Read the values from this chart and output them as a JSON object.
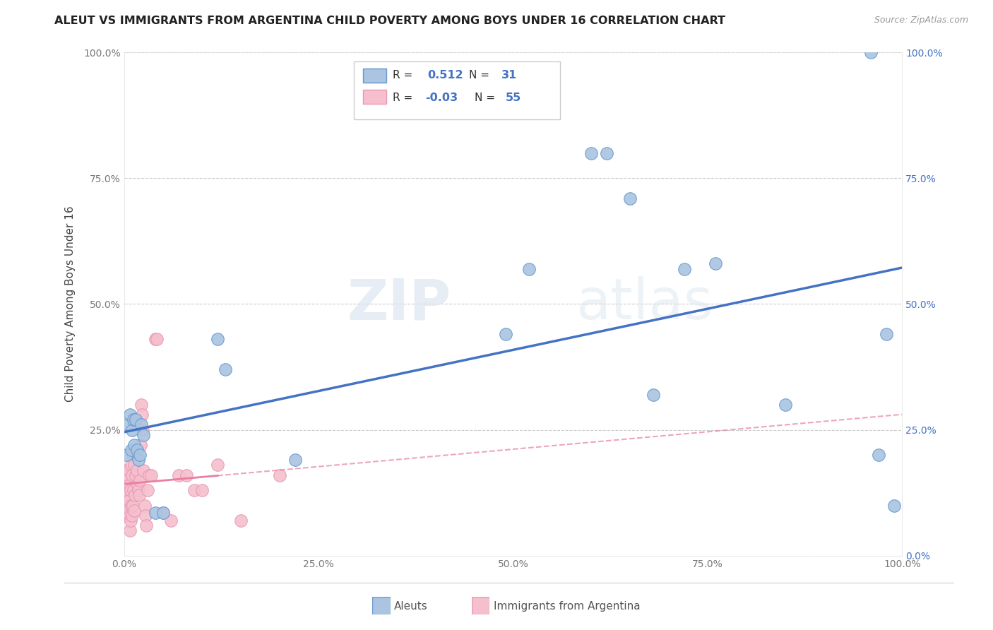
{
  "title": "ALEUT VS IMMIGRANTS FROM ARGENTINA CHILD POVERTY AMONG BOYS UNDER 16 CORRELATION CHART",
  "source": "Source: ZipAtlas.com",
  "ylabel": "Child Poverty Among Boys Under 16",
  "aleuts_R": 0.512,
  "aleuts_N": 31,
  "argentina_R": -0.03,
  "argentina_N": 55,
  "aleuts_x": [
    0.003,
    0.005,
    0.007,
    0.009,
    0.01,
    0.012,
    0.013,
    0.015,
    0.016,
    0.018,
    0.02,
    0.022,
    0.025,
    0.04,
    0.05,
    0.12,
    0.13,
    0.22,
    0.49,
    0.52,
    0.6,
    0.62,
    0.65,
    0.68,
    0.72,
    0.76,
    0.85,
    0.96,
    0.97,
    0.98,
    0.99
  ],
  "aleuts_y": [
    0.2,
    0.26,
    0.28,
    0.21,
    0.25,
    0.27,
    0.22,
    0.27,
    0.21,
    0.19,
    0.2,
    0.26,
    0.24,
    0.085,
    0.085,
    0.43,
    0.37,
    0.19,
    0.44,
    0.57,
    0.8,
    0.8,
    0.71,
    0.32,
    0.57,
    0.58,
    0.3,
    1.0,
    0.2,
    0.44,
    0.1
  ],
  "argentina_x": [
    0.001,
    0.001,
    0.002,
    0.002,
    0.003,
    0.003,
    0.004,
    0.004,
    0.005,
    0.005,
    0.006,
    0.006,
    0.007,
    0.007,
    0.007,
    0.008,
    0.008,
    0.009,
    0.009,
    0.01,
    0.01,
    0.011,
    0.011,
    0.012,
    0.013,
    0.013,
    0.014,
    0.015,
    0.016,
    0.017,
    0.018,
    0.019,
    0.02,
    0.021,
    0.022,
    0.023,
    0.024,
    0.025,
    0.026,
    0.027,
    0.028,
    0.03,
    0.032,
    0.035,
    0.04,
    0.042,
    0.05,
    0.06,
    0.07,
    0.08,
    0.09,
    0.1,
    0.12,
    0.15,
    0.2
  ],
  "argentina_y": [
    0.17,
    0.1,
    0.12,
    0.08,
    0.15,
    0.1,
    0.13,
    0.08,
    0.16,
    0.09,
    0.17,
    0.11,
    0.14,
    0.08,
    0.05,
    0.13,
    0.07,
    0.18,
    0.1,
    0.16,
    0.08,
    0.2,
    0.1,
    0.13,
    0.18,
    0.09,
    0.12,
    0.16,
    0.17,
    0.14,
    0.13,
    0.12,
    0.15,
    0.22,
    0.3,
    0.28,
    0.25,
    0.17,
    0.1,
    0.08,
    0.06,
    0.13,
    0.16,
    0.16,
    0.43,
    0.43,
    0.085,
    0.07,
    0.16,
    0.16,
    0.13,
    0.13,
    0.18,
    0.07,
    0.16
  ],
  "aleut_color": "#aac4e2",
  "argentina_color": "#f5bfce",
  "aleut_edge": "#6699cc",
  "argentina_edge": "#e899b4",
  "trendline_aleut_color": "#4472c4",
  "trendline_argentina_color": "#e87fa0",
  "background_color": "#ffffff",
  "watermark_zip": "ZIP",
  "watermark_atlas": "atlas",
  "xlim": [
    0,
    1.0
  ],
  "ylim": [
    0,
    1.0
  ],
  "xticks": [
    0.0,
    0.25,
    0.5,
    0.75,
    1.0
  ],
  "yticks": [
    0.0,
    0.25,
    0.5,
    0.75,
    1.0
  ],
  "xtick_labels": [
    "0.0%",
    "25.0%",
    "50.0%",
    "75.0%",
    "100.0%"
  ],
  "left_ytick_labels": [
    "",
    "25.0%",
    "50.0%",
    "75.0%",
    "100.0%"
  ],
  "right_ytick_labels": [
    "0.0%",
    "25.0%",
    "50.0%",
    "75.0%",
    "100.0%"
  ]
}
